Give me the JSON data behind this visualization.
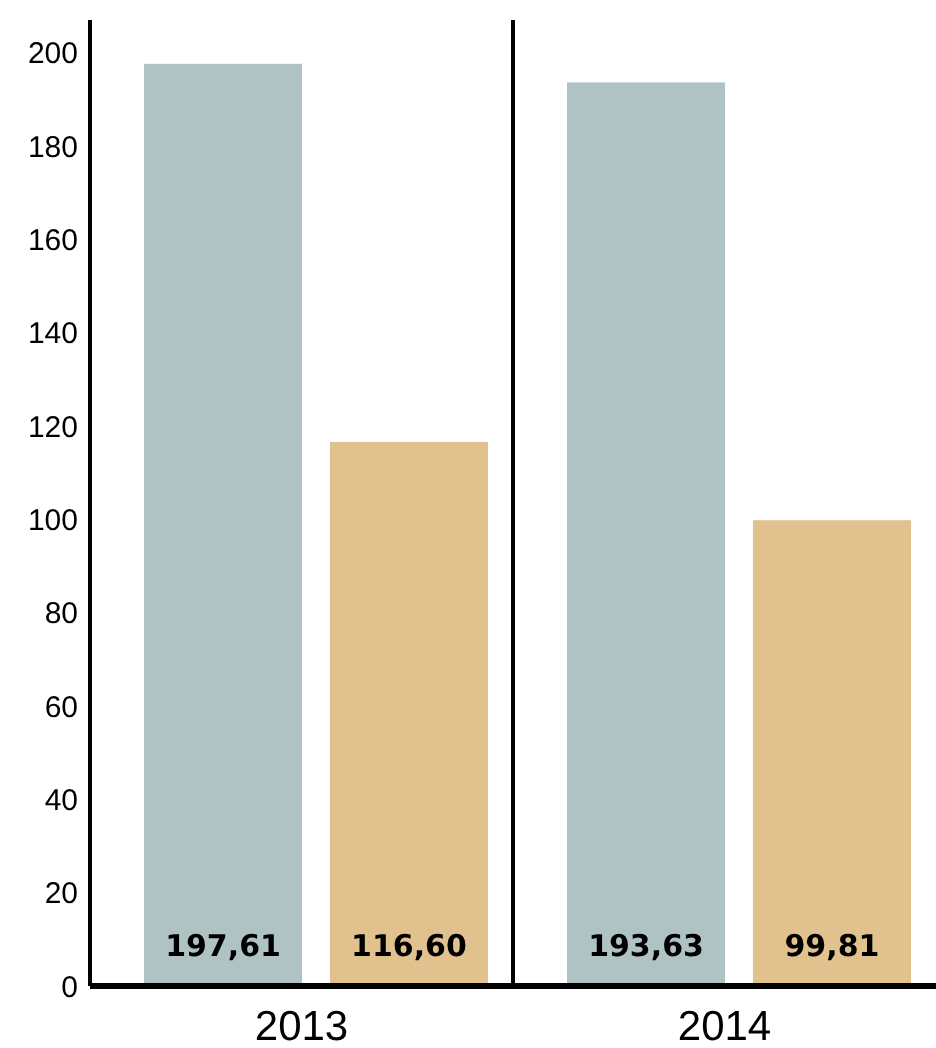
{
  "chart_data": {
    "type": "bar",
    "categories": [
      "2013",
      "2014"
    ],
    "series": [
      {
        "color": "#afc3c4",
        "values": [
          197.61,
          193.63
        ],
        "value_labels": [
          "197,61",
          "193,63"
        ]
      },
      {
        "color": "#e1c28f",
        "values": [
          116.6,
          99.81
        ],
        "value_labels": [
          "116,60",
          "99,81"
        ]
      }
    ],
    "ylim": [
      0,
      207
    ],
    "yticks": [
      0,
      20,
      40,
      60,
      80,
      100,
      120,
      140,
      160,
      180,
      200
    ],
    "grid": false
  }
}
